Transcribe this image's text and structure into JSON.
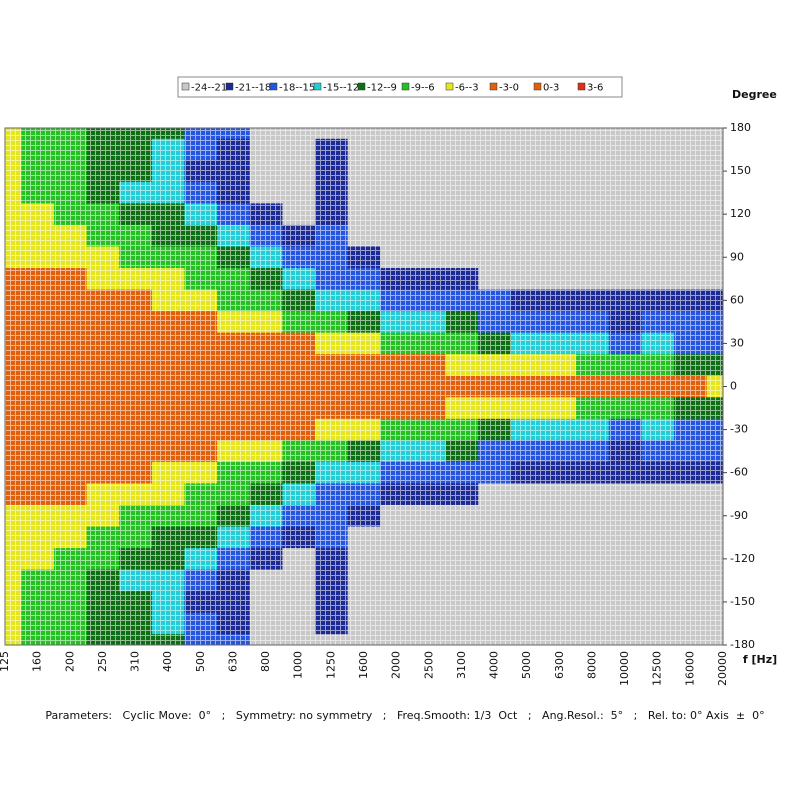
{
  "chart_data": {
    "type": "contour",
    "y_label": "Degree",
    "x_label": "f [Hz]",
    "footer": "Parameters:   Cyclic Move:  0°   ;   Symmetry: no symmetry   ;   Freq.Smooth: 1/3  Oct   ;   Ang.Resol.:  5°   ;   Rel. to: 0° Axis  ±  0°",
    "legend_labels": [
      "-24--21",
      "-21--18",
      "-18--15",
      "-15--12",
      "-12--9",
      "-9--6",
      "-6--3",
      "-3-0",
      "0-3",
      "3-6"
    ],
    "levels": [
      -24,
      -21,
      -18,
      -15,
      -12,
      -9,
      -6,
      -3,
      0,
      3,
      6
    ],
    "colors": [
      "#c8c8c8",
      "#1c2a96",
      "#2454e0",
      "#22cdd6",
      "#0e6e14",
      "#24c024",
      "#e6e61e",
      "#e2600c",
      "#e2600c",
      "#e03018"
    ],
    "categories": [
      "125",
      "160",
      "200",
      "250",
      "310",
      "400",
      "500",
      "630",
      "800",
      "1000",
      "1250",
      "1600",
      "2000",
      "2500",
      "3100",
      "4000",
      "5000",
      "6300",
      "8000",
      "10000",
      "12500",
      "16000",
      "20000"
    ],
    "ylim": [
      -180,
      180
    ],
    "yticks": [
      180,
      150,
      120,
      90,
      60,
      30,
      0,
      -30,
      -60,
      -90,
      -120,
      -150,
      -180
    ],
    "z": [
      [
        -5,
        -5,
        -5,
        -5,
        -5,
        -5,
        -4,
        -2,
        -1,
        -1,
        -1,
        -1,
        -1,
        -1,
        -1,
        -1,
        -1,
        -2,
        -4,
        -5,
        -5,
        -5,
        -5,
        -5,
        -5
      ],
      [
        -8,
        -8,
        -7,
        -7,
        -6,
        -5,
        -4,
        -2,
        -2,
        -1,
        -1,
        -1,
        -1,
        -1,
        -1,
        -1,
        -2,
        -2,
        -4,
        -5,
        -6,
        -7,
        -7,
        -8,
        -8
      ],
      [
        -8,
        -8,
        -8,
        -7,
        -7,
        -5,
        -4,
        -3,
        -2,
        -1,
        -1,
        -1,
        -1,
        -1,
        -1,
        -1,
        -2,
        -3,
        -4,
        -5,
        -7,
        -7,
        -8,
        -8,
        -8
      ],
      [
        -11,
        -11,
        -11,
        -10,
        -8,
        -7,
        -5,
        -4,
        -2,
        -2,
        -1,
        -1,
        -1,
        -1,
        -1,
        -2,
        -2,
        -4,
        -5,
        -7,
        -8,
        -10,
        -11,
        -11,
        -11
      ],
      [
        -10,
        -11,
        -11,
        -13,
        -10,
        -8,
        -7,
        -4,
        -2,
        -2,
        -1,
        -1,
        -1,
        -1,
        -1,
        -2,
        -2,
        -4,
        -7,
        -8,
        -10,
        -13,
        -11,
        -11,
        -10
      ],
      [
        -12,
        -13,
        -14,
        -13,
        -11,
        -10,
        -7,
        -5,
        -4,
        -2,
        -1,
        -1,
        -1,
        -1,
        -1,
        -2,
        -4,
        -5,
        -7,
        -10,
        -11,
        -13,
        -14,
        -13,
        -12
      ],
      [
        -16,
        -17,
        -19,
        -16,
        -13,
        -11,
        -8,
        -7,
        -5,
        -2,
        -1,
        -1,
        -1,
        -1,
        -1,
        -2,
        -5,
        -7,
        -8,
        -11,
        -13,
        -16,
        -19,
        -17,
        -16
      ],
      [
        -18,
        -19,
        -20,
        -19,
        -17,
        -14,
        -10,
        -8,
        -7,
        -4,
        -2,
        -1,
        -1,
        -1,
        -2,
        -4,
        -7,
        -8,
        -10,
        -14,
        -17,
        -19,
        -20,
        -19,
        -18
      ],
      [
        -22,
        -22,
        -22,
        -22,
        -20,
        -17,
        -14,
        -11,
        -8,
        -5,
        -2,
        -1,
        -1,
        -1,
        -2,
        -5,
        -8,
        -11,
        -14,
        -17,
        -20,
        -22,
        -22,
        -22,
        -22
      ],
      [
        -22,
        -22,
        -22,
        -22,
        -22,
        -19,
        -17,
        -14,
        -10,
        -7,
        -3,
        -1,
        -1,
        -1,
        -3,
        -7,
        -10,
        -14,
        -17,
        -19,
        -22,
        -22,
        -22,
        -22,
        -22
      ],
      [
        -22,
        -20,
        -19,
        -20,
        -19,
        -17,
        -17,
        -16,
        -13,
        -8,
        -4,
        -1,
        -1,
        -1,
        -4,
        -8,
        -13,
        -16,
        -17,
        -17,
        -19,
        -20,
        -19,
        -20,
        -22
      ],
      [
        -22,
        -22,
        -22,
        -22,
        -22,
        -22,
        -19,
        -17,
        -15,
        -10,
        -6,
        -2,
        -1,
        -2,
        -6,
        -10,
        -15,
        -17,
        -19,
        -22,
        -22,
        -22,
        -22,
        -22,
        -22
      ],
      [
        -22,
        -22,
        -22,
        -22,
        -22,
        -22,
        -22,
        -19,
        -17,
        -13,
        -7,
        -2,
        -1,
        -2,
        -7,
        -13,
        -17,
        -19,
        -22,
        -22,
        -22,
        -22,
        -22,
        -22,
        -22
      ],
      [
        -22,
        -22,
        -22,
        -22,
        -22,
        -22,
        -22,
        -20,
        -17,
        -14,
        -8,
        -3,
        -1,
        -3,
        -8,
        -14,
        -17,
        -20,
        -22,
        -22,
        -22,
        -22,
        -22,
        -22,
        -22
      ],
      [
        -22,
        -22,
        -22,
        -22,
        -22,
        -22,
        -22,
        -19,
        -16,
        -10,
        -9,
        -4,
        -1,
        -4,
        -9,
        -10,
        -16,
        -19,
        -22,
        -22,
        -22,
        -22,
        -22,
        -22,
        -22
      ],
      [
        -22,
        -22,
        -22,
        -22,
        -22,
        -22,
        -22,
        -22,
        -18,
        -16,
        -11,
        -4,
        -1,
        -4,
        -11,
        -16,
        -18,
        -22,
        -22,
        -22,
        -22,
        -22,
        -22,
        -22,
        -22
      ],
      [
        -22,
        -22,
        -22,
        -22,
        -22,
        -22,
        -22,
        -22,
        -19,
        -16,
        -13,
        -5,
        -2,
        -5,
        -13,
        -16,
        -19,
        -22,
        -22,
        -22,
        -22,
        -22,
        -22,
        -22,
        -22
      ],
      [
        -22,
        -22,
        -22,
        -22,
        -22,
        -22,
        -22,
        -22,
        -19,
        -17,
        -14,
        -6,
        -2,
        -6,
        -14,
        -17,
        -19,
        -22,
        -22,
        -22,
        -22,
        -22,
        -22,
        -22,
        -22
      ],
      [
        -22,
        -22,
        -22,
        -22,
        -22,
        -22,
        -22,
        -22,
        -20,
        -18,
        -15,
        -7,
        -2,
        -7,
        -15,
        -18,
        -20,
        -22,
        -22,
        -22,
        -22,
        -22,
        -22,
        -22,
        -22
      ],
      [
        -22,
        -22,
        -22,
        -22,
        -22,
        -22,
        -22,
        -22,
        -20,
        -19,
        -16,
        -8,
        -3,
        -8,
        -16,
        -19,
        -20,
        -22,
        -22,
        -22,
        -22,
        -22,
        -22,
        -22,
        -22
      ],
      [
        -22,
        -22,
        -22,
        -22,
        -22,
        -22,
        -22,
        -22,
        -19,
        -17,
        -14,
        -9,
        -3,
        -9,
        -14,
        -17,
        -19,
        -22,
        -22,
        -22,
        -22,
        -22,
        -22,
        -22,
        -22
      ],
      [
        -22,
        -22,
        -22,
        -22,
        -22,
        -22,
        -22,
        -22,
        -20,
        -18,
        -17,
        -10,
        -3,
        -10,
        -17,
        -18,
        -20,
        -22,
        -22,
        -22,
        -22,
        -22,
        -22,
        -22,
        -22
      ],
      [
        -22,
        -22,
        -22,
        -22,
        -22,
        -22,
        -22,
        -22,
        -20,
        -17,
        -17,
        -10,
        -4,
        -10,
        -17,
        -17,
        -20,
        -22,
        -22,
        -22,
        -22,
        -22,
        -22,
        -22,
        -22
      ]
    ]
  }
}
